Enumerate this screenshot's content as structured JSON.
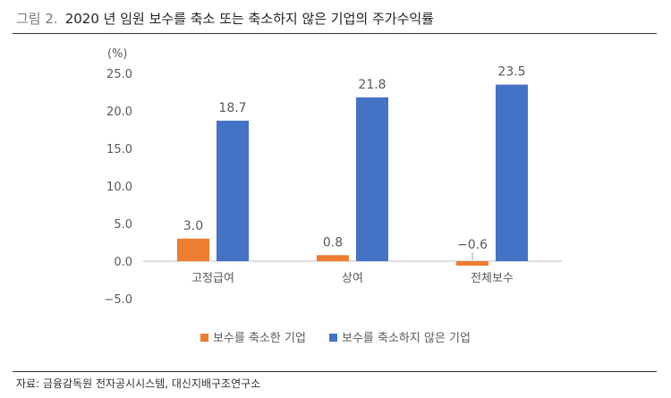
{
  "figure": {
    "number": "그림 2.",
    "title": "2020 년 임원 보수를 축소 또는 축소하지 않은 기업의 주가수익률"
  },
  "source": "자료: 금융감독원 전자공시시스템, 대신지배구조연구소",
  "colors": {
    "reduced": "#ED7D31",
    "not_reduced": "#4472C4",
    "axis": "#BFBFBF",
    "text": "#595959"
  },
  "chart_data": {
    "type": "bar",
    "unit": "(%)",
    "categories": [
      "고정급여",
      "상여",
      "전체보수"
    ],
    "series": [
      {
        "name": "보수를 축소한 기업",
        "values": [
          3.0,
          0.8,
          -0.6
        ]
      },
      {
        "name": "보수를 축소하지 않은 기업",
        "values": [
          18.7,
          21.8,
          23.5
        ]
      }
    ],
    "data_labels": [
      [
        "3.0",
        "0.8",
        "−0.6"
      ],
      [
        "18.7",
        "21.8",
        "23.5"
      ]
    ],
    "ylim": [
      -5,
      25
    ],
    "yticks": [
      "−5.0",
      "0.0",
      "5.0",
      "10.0",
      "15.0",
      "20.0",
      "25.0"
    ],
    "legend_position": "bottom",
    "grid": false
  }
}
